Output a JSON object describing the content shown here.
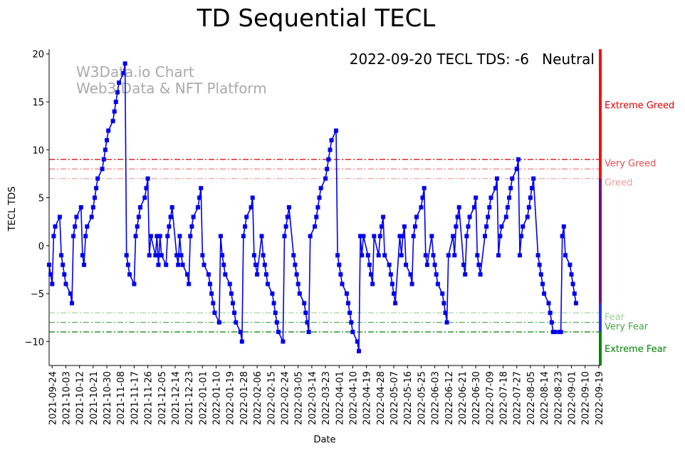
{
  "chart_data": {
    "type": "line",
    "title": "TD Sequential TECL",
    "xlabel": "Date",
    "ylabel": "TECL TDS",
    "ylim": [
      -12.5,
      20.5
    ],
    "yticks": [
      -10,
      -5,
      0,
      5,
      10,
      15,
      20
    ],
    "xticks": [
      "2021-09-24",
      "2021-10-03",
      "2021-10-12",
      "2021-10-21",
      "2021-10-30",
      "2021-11-08",
      "2021-11-17",
      "2021-11-26",
      "2021-12-05",
      "2021-12-14",
      "2021-12-23",
      "2022-01-01",
      "2022-01-10",
      "2022-01-19",
      "2022-01-28",
      "2022-02-06",
      "2022-02-15",
      "2022-02-24",
      "2022-03-05",
      "2022-03-14",
      "2022-03-23",
      "2022-04-01",
      "2022-04-10",
      "2022-04-19",
      "2022-04-28",
      "2022-05-07",
      "2022-05-16",
      "2022-05-25",
      "2022-06-03",
      "2022-06-12",
      "2022-06-21",
      "2022-06-30",
      "2022-07-09",
      "2022-07-18",
      "2022-07-27",
      "2022-08-05",
      "2022-08-14",
      "2022-08-23",
      "2022-09-01",
      "2022-09-10",
      "2022-09-19"
    ],
    "x_start": "2021-09-22",
    "x_end": "2022-09-20",
    "series": [
      {
        "name": "TECL TDS",
        "color": "#0000ee",
        "points": [
          [
            0,
            -2
          ],
          [
            1,
            -3
          ],
          [
            2,
            -4
          ],
          [
            3,
            1
          ],
          [
            4,
            2
          ],
          [
            7,
            3
          ],
          [
            8,
            -1
          ],
          [
            9,
            -2
          ],
          [
            10,
            -3
          ],
          [
            11,
            -4
          ],
          [
            14,
            -5
          ],
          [
            15,
            -6
          ],
          [
            16,
            1
          ],
          [
            17,
            2
          ],
          [
            18,
            3
          ],
          [
            21,
            4
          ],
          [
            22,
            -1
          ],
          [
            23,
            -2
          ],
          [
            24,
            1
          ],
          [
            25,
            2
          ],
          [
            28,
            3
          ],
          [
            29,
            4
          ],
          [
            30,
            5
          ],
          [
            31,
            6
          ],
          [
            32,
            7
          ],
          [
            35,
            8
          ],
          [
            36,
            9
          ],
          [
            37,
            10
          ],
          [
            38,
            11
          ],
          [
            39,
            12
          ],
          [
            42,
            13
          ],
          [
            43,
            14
          ],
          [
            44,
            15
          ],
          [
            45,
            16
          ],
          [
            46,
            17
          ],
          [
            49,
            18
          ],
          [
            50,
            19
          ],
          [
            51,
            -1
          ],
          [
            52,
            -2
          ],
          [
            53,
            -3
          ],
          [
            56,
            -4
          ],
          [
            57,
            1
          ],
          [
            58,
            2
          ],
          [
            59,
            3
          ],
          [
            60,
            4
          ],
          [
            63,
            5
          ],
          [
            64,
            6
          ],
          [
            65,
            7
          ],
          [
            66,
            -1
          ],
          [
            67,
            1
          ],
          [
            70,
            -1
          ],
          [
            71,
            1
          ],
          [
            72,
            -2
          ],
          [
            73,
            1
          ],
          [
            74,
            -1
          ],
          [
            77,
            -2
          ],
          [
            78,
            1
          ],
          [
            79,
            2
          ],
          [
            80,
            3
          ],
          [
            81,
            4
          ],
          [
            84,
            -1
          ],
          [
            85,
            -2
          ],
          [
            86,
            1
          ],
          [
            87,
            -1
          ],
          [
            88,
            -2
          ],
          [
            91,
            -3
          ],
          [
            92,
            -4
          ],
          [
            93,
            1
          ],
          [
            94,
            2
          ],
          [
            95,
            3
          ],
          [
            98,
            4
          ],
          [
            99,
            5
          ],
          [
            100,
            6
          ],
          [
            101,
            -1
          ],
          [
            102,
            -2
          ],
          [
            105,
            -3
          ],
          [
            106,
            -4
          ],
          [
            107,
            -5
          ],
          [
            108,
            -6
          ],
          [
            109,
            -7
          ],
          [
            112,
            -8
          ],
          [
            113,
            1
          ],
          [
            114,
            -1
          ],
          [
            115,
            -2
          ],
          [
            116,
            -3
          ],
          [
            119,
            -4
          ],
          [
            120,
            -5
          ],
          [
            121,
            -6
          ],
          [
            122,
            -7
          ],
          [
            123,
            -8
          ],
          [
            126,
            -9
          ],
          [
            127,
            -10
          ],
          [
            128,
            1
          ],
          [
            129,
            2
          ],
          [
            130,
            3
          ],
          [
            133,
            4
          ],
          [
            134,
            5
          ],
          [
            135,
            -1
          ],
          [
            136,
            -2
          ],
          [
            137,
            -3
          ],
          [
            140,
            1
          ],
          [
            141,
            -1
          ],
          [
            142,
            -2
          ],
          [
            143,
            -3
          ],
          [
            144,
            -4
          ],
          [
            147,
            -5
          ],
          [
            148,
            -6
          ],
          [
            149,
            -7
          ],
          [
            150,
            -8
          ],
          [
            151,
            -9
          ],
          [
            154,
            -10
          ],
          [
            155,
            1
          ],
          [
            156,
            2
          ],
          [
            157,
            3
          ],
          [
            158,
            4
          ],
          [
            161,
            -1
          ],
          [
            162,
            -2
          ],
          [
            163,
            -3
          ],
          [
            164,
            -4
          ],
          [
            165,
            -5
          ],
          [
            168,
            -6
          ],
          [
            169,
            -7
          ],
          [
            170,
            -8
          ],
          [
            171,
            -9
          ],
          [
            172,
            1
          ],
          [
            175,
            2
          ],
          [
            176,
            3
          ],
          [
            177,
            4
          ],
          [
            178,
            5
          ],
          [
            179,
            6
          ],
          [
            182,
            7
          ],
          [
            183,
            8
          ],
          [
            184,
            9
          ],
          [
            185,
            10
          ],
          [
            186,
            11
          ],
          [
            189,
            12
          ],
          [
            190,
            -1
          ],
          [
            191,
            -2
          ],
          [
            192,
            -3
          ],
          [
            193,
            -4
          ],
          [
            196,
            -5
          ],
          [
            197,
            -6
          ],
          [
            198,
            -7
          ],
          [
            199,
            -8
          ],
          [
            200,
            -9
          ],
          [
            203,
            -10
          ],
          [
            204,
            -11
          ],
          [
            205,
            1
          ],
          [
            206,
            -1
          ],
          [
            207,
            1
          ],
          [
            210,
            -1
          ],
          [
            211,
            -2
          ],
          [
            212,
            -3
          ],
          [
            213,
            -4
          ],
          [
            214,
            1
          ],
          [
            217,
            -1
          ],
          [
            218,
            1
          ],
          [
            219,
            2
          ],
          [
            220,
            3
          ],
          [
            221,
            -1
          ],
          [
            224,
            -2
          ],
          [
            225,
            -3
          ],
          [
            226,
            -4
          ],
          [
            227,
            -5
          ],
          [
            228,
            -6
          ],
          [
            231,
            1
          ],
          [
            232,
            -1
          ],
          [
            233,
            1
          ],
          [
            234,
            2
          ],
          [
            235,
            -2
          ],
          [
            238,
            -3
          ],
          [
            239,
            -4
          ],
          [
            240,
            1
          ],
          [
            241,
            2
          ],
          [
            242,
            3
          ],
          [
            245,
            4
          ],
          [
            246,
            5
          ],
          [
            247,
            6
          ],
          [
            248,
            -1
          ],
          [
            249,
            -2
          ],
          [
            252,
            1
          ],
          [
            253,
            -1
          ],
          [
            254,
            -2
          ],
          [
            255,
            -3
          ],
          [
            256,
            -4
          ],
          [
            259,
            -5
          ],
          [
            260,
            -6
          ],
          [
            261,
            -7
          ],
          [
            262,
            -8
          ],
          [
            263,
            -1
          ],
          [
            266,
            1
          ],
          [
            267,
            -1
          ],
          [
            268,
            2
          ],
          [
            269,
            3
          ],
          [
            270,
            4
          ],
          [
            273,
            -2
          ],
          [
            274,
            -3
          ],
          [
            275,
            1
          ],
          [
            276,
            2
          ],
          [
            277,
            3
          ],
          [
            280,
            4
          ],
          [
            281,
            5
          ],
          [
            282,
            -1
          ],
          [
            283,
            -2
          ],
          [
            284,
            -3
          ],
          [
            287,
            1
          ],
          [
            288,
            2
          ],
          [
            289,
            3
          ],
          [
            290,
            4
          ],
          [
            291,
            5
          ],
          [
            294,
            6
          ],
          [
            295,
            7
          ],
          [
            296,
            -1
          ],
          [
            297,
            1
          ],
          [
            298,
            2
          ],
          [
            301,
            3
          ],
          [
            302,
            4
          ],
          [
            303,
            5
          ],
          [
            304,
            6
          ],
          [
            305,
            7
          ],
          [
            308,
            8
          ],
          [
            309,
            9
          ],
          [
            310,
            -1
          ],
          [
            311,
            1
          ],
          [
            312,
            2
          ],
          [
            315,
            3
          ],
          [
            316,
            4
          ],
          [
            317,
            5
          ],
          [
            318,
            6
          ],
          [
            319,
            7
          ],
          [
            322,
            -1
          ],
          [
            323,
            -2
          ],
          [
            324,
            -3
          ],
          [
            325,
            -4
          ],
          [
            326,
            -5
          ],
          [
            329,
            -6
          ],
          [
            330,
            -7
          ],
          [
            331,
            -8
          ],
          [
            332,
            -9
          ],
          [
            333,
            -9
          ],
          [
            336,
            -9
          ],
          [
            337,
            -9
          ],
          [
            338,
            1
          ],
          [
            339,
            2
          ],
          [
            340,
            -1
          ],
          [
            343,
            -2
          ],
          [
            344,
            -3
          ],
          [
            345,
            -4
          ],
          [
            346,
            -5
          ],
          [
            347,
            -6
          ]
        ]
      }
    ],
    "reference_lines": [
      {
        "value": 9,
        "color": "#dd0000",
        "label": "Very Greed",
        "label_color": "#e85050"
      },
      {
        "value": 8,
        "color": "#f07070",
        "label": "",
        "label_color": "#e85050"
      },
      {
        "value": 7,
        "color": "#f4a6a6",
        "label": "Greed",
        "label_color": "#f29a9a"
      },
      {
        "value": -7,
        "color": "#a8d8a0",
        "label": "Fear",
        "label_color": "#9fcf98"
      },
      {
        "value": -8,
        "color": "#4caf4c",
        "label": "Very Fear",
        "label_color": "#44a844"
      },
      {
        "value": -9,
        "color": "#008000",
        "label": "",
        "label_color": "#008000"
      }
    ],
    "zone_labels": [
      {
        "text": "Extreme Greed",
        "value": 14.7,
        "color": "#e00000"
      },
      {
        "text": "Extreme Fear",
        "value": -10.7,
        "color": "#008000"
      }
    ],
    "side_bar_segments": [
      {
        "from": 7,
        "to": 20.5,
        "color": "#ee1111"
      },
      {
        "from": -6,
        "to": 7,
        "color": "#800080"
      },
      {
        "from": -9,
        "to": -6,
        "color": "#2233ee"
      },
      {
        "from": -12.5,
        "to": -9,
        "color": "#008800"
      }
    ],
    "watermark": [
      "W3Data.io Chart",
      "Web3 Data & NFT Platform"
    ],
    "status_text": "2022-09-20 TECL TDS: -6",
    "status_label": "Neutral",
    "status_color": "#800080"
  }
}
